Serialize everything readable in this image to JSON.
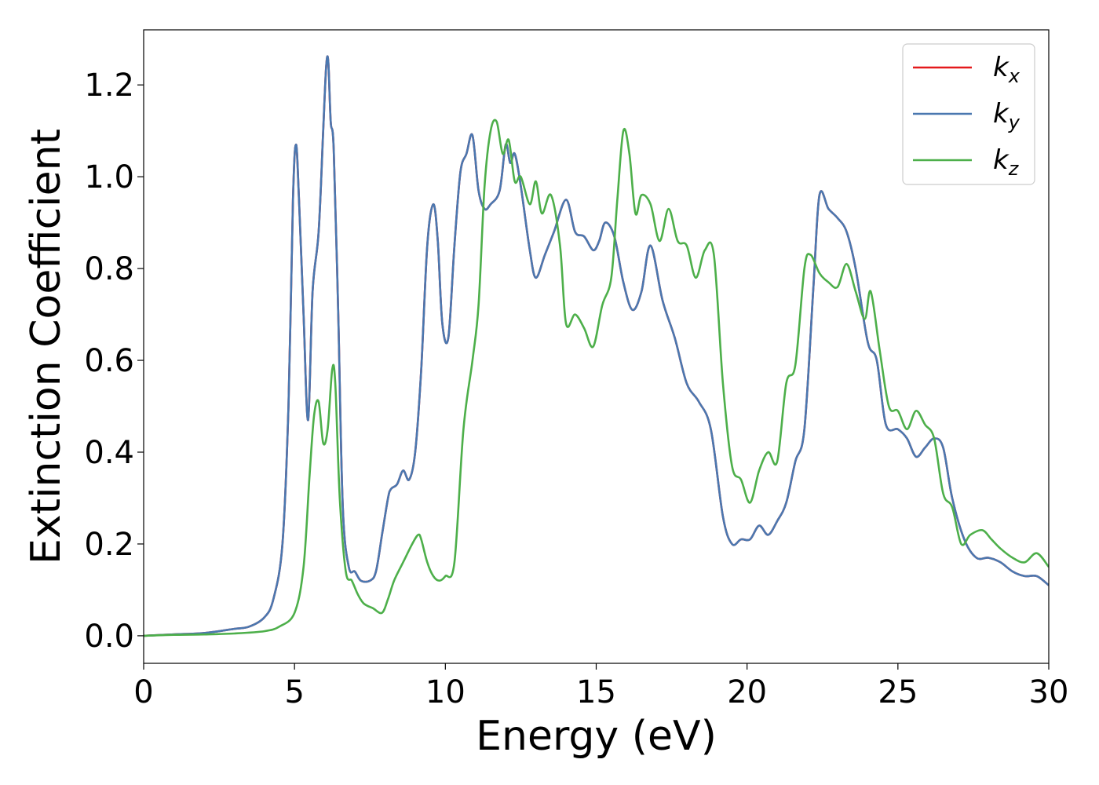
{
  "chart_data": {
    "type": "line",
    "title": "",
    "xlabel": "Energy (eV)",
    "ylabel": "Extinction Coefficient",
    "xlim": [
      0,
      30
    ],
    "ylim": [
      -0.06,
      1.32
    ],
    "xticks": [
      0,
      5,
      10,
      15,
      20,
      25,
      30
    ],
    "xtick_labels": [
      "0",
      "5",
      "10",
      "15",
      "20",
      "25",
      "30"
    ],
    "yticks": [
      0.0,
      0.2,
      0.4,
      0.6,
      0.8,
      1.0,
      1.2
    ],
    "ytick_labels": [
      "0.0",
      "0.2",
      "0.4",
      "0.6",
      "0.8",
      "1.0",
      "1.2"
    ],
    "grid": false,
    "legend": {
      "position": "top-right",
      "entries": [
        {
          "base": "k",
          "sub": "x",
          "color": "#e41a1c"
        },
        {
          "base": "k",
          "sub": "y",
          "color": "#4a78b0"
        },
        {
          "base": "k",
          "sub": "z",
          "color": "#4daf4a"
        }
      ]
    },
    "series": [
      {
        "name": "kx",
        "color": "#e41a1c",
        "x": [
          0,
          1,
          2,
          3,
          3.5,
          4,
          4.3,
          4.6,
          4.8,
          4.95,
          5.05,
          5.15,
          5.3,
          5.45,
          5.6,
          5.8,
          5.95,
          6.05,
          6.12,
          6.2,
          6.3,
          6.45,
          6.6,
          6.8,
          7,
          7.2,
          7.5,
          7.7,
          7.9,
          8.1,
          8.2,
          8.4,
          8.6,
          8.8,
          9,
          9.2,
          9.4,
          9.6,
          9.75,
          9.9,
          10.1,
          10.3,
          10.5,
          10.7,
          10.9,
          11.1,
          11.3,
          11.5,
          11.8,
          12,
          12.15,
          12.3,
          12.5,
          12.8,
          13,
          13.3,
          13.6,
          14,
          14.3,
          14.6,
          14.9,
          15.1,
          15.3,
          15.6,
          15.9,
          16.2,
          16.5,
          16.8,
          17.2,
          17.6,
          18,
          18.4,
          18.8,
          19.2,
          19.5,
          19.8,
          20.1,
          20.4,
          20.7,
          21,
          21.3,
          21.6,
          21.9,
          22.2,
          22.4,
          22.7,
          23,
          23.3,
          23.6,
          24,
          24.3,
          24.6,
          25,
          25.3,
          25.6,
          25.9,
          26.2,
          26.5,
          26.8,
          27.2,
          27.6,
          28,
          28.4,
          28.8,
          29.2,
          29.6,
          30
        ],
        "values": [
          0,
          0.003,
          0.006,
          0.015,
          0.02,
          0.04,
          0.08,
          0.2,
          0.5,
          0.95,
          1.07,
          0.95,
          0.7,
          0.47,
          0.75,
          0.88,
          1.1,
          1.24,
          1.25,
          1.12,
          1.06,
          0.7,
          0.28,
          0.15,
          0.14,
          0.12,
          0.12,
          0.14,
          0.22,
          0.3,
          0.32,
          0.33,
          0.36,
          0.34,
          0.4,
          0.58,
          0.85,
          0.94,
          0.86,
          0.68,
          0.65,
          0.85,
          1.01,
          1.05,
          1.09,
          0.97,
          0.93,
          0.94,
          0.97,
          1.07,
          1.03,
          1.05,
          0.98,
          0.84,
          0.78,
          0.83,
          0.88,
          0.95,
          0.88,
          0.87,
          0.84,
          0.86,
          0.9,
          0.87,
          0.77,
          0.71,
          0.75,
          0.85,
          0.73,
          0.65,
          0.55,
          0.51,
          0.45,
          0.26,
          0.2,
          0.21,
          0.21,
          0.24,
          0.22,
          0.25,
          0.29,
          0.38,
          0.45,
          0.76,
          0.96,
          0.93,
          0.91,
          0.88,
          0.8,
          0.64,
          0.6,
          0.46,
          0.45,
          0.43,
          0.39,
          0.41,
          0.43,
          0.41,
          0.3,
          0.21,
          0.17,
          0.17,
          0.16,
          0.14,
          0.13,
          0.13,
          0.11
        ]
      },
      {
        "name": "ky",
        "color": "#4a78b0",
        "x": [
          0,
          1,
          2,
          3,
          3.5,
          4,
          4.3,
          4.6,
          4.8,
          4.95,
          5.05,
          5.15,
          5.3,
          5.45,
          5.6,
          5.8,
          5.95,
          6.05,
          6.12,
          6.2,
          6.3,
          6.45,
          6.6,
          6.8,
          7,
          7.2,
          7.5,
          7.7,
          7.9,
          8.1,
          8.2,
          8.4,
          8.6,
          8.8,
          9,
          9.2,
          9.4,
          9.6,
          9.75,
          9.9,
          10.1,
          10.3,
          10.5,
          10.7,
          10.9,
          11.1,
          11.3,
          11.5,
          11.8,
          12,
          12.15,
          12.3,
          12.5,
          12.8,
          13,
          13.3,
          13.6,
          14,
          14.3,
          14.6,
          14.9,
          15.1,
          15.3,
          15.6,
          15.9,
          16.2,
          16.5,
          16.8,
          17.2,
          17.6,
          18,
          18.4,
          18.8,
          19.2,
          19.5,
          19.8,
          20.1,
          20.4,
          20.7,
          21,
          21.3,
          21.6,
          21.9,
          22.2,
          22.4,
          22.7,
          23,
          23.3,
          23.6,
          24,
          24.3,
          24.6,
          25,
          25.3,
          25.6,
          25.9,
          26.2,
          26.5,
          26.8,
          27.2,
          27.6,
          28,
          28.4,
          28.8,
          29.2,
          29.6,
          30
        ],
        "values": [
          0,
          0.003,
          0.006,
          0.015,
          0.02,
          0.04,
          0.08,
          0.2,
          0.5,
          0.95,
          1.07,
          0.95,
          0.7,
          0.47,
          0.75,
          0.88,
          1.1,
          1.24,
          1.25,
          1.12,
          1.06,
          0.7,
          0.28,
          0.15,
          0.14,
          0.12,
          0.12,
          0.14,
          0.22,
          0.3,
          0.32,
          0.33,
          0.36,
          0.34,
          0.4,
          0.58,
          0.85,
          0.94,
          0.86,
          0.68,
          0.65,
          0.85,
          1.01,
          1.05,
          1.09,
          0.97,
          0.93,
          0.94,
          0.97,
          1.07,
          1.03,
          1.05,
          0.98,
          0.84,
          0.78,
          0.83,
          0.88,
          0.95,
          0.88,
          0.87,
          0.84,
          0.86,
          0.9,
          0.87,
          0.77,
          0.71,
          0.75,
          0.85,
          0.73,
          0.65,
          0.55,
          0.51,
          0.45,
          0.26,
          0.2,
          0.21,
          0.21,
          0.24,
          0.22,
          0.25,
          0.29,
          0.38,
          0.45,
          0.76,
          0.96,
          0.93,
          0.91,
          0.88,
          0.8,
          0.64,
          0.6,
          0.46,
          0.45,
          0.43,
          0.39,
          0.41,
          0.43,
          0.41,
          0.3,
          0.21,
          0.17,
          0.17,
          0.16,
          0.14,
          0.13,
          0.13,
          0.11
        ]
      },
      {
        "name": "kz",
        "color": "#4daf4a",
        "x": [
          0,
          1,
          2,
          3,
          4,
          4.5,
          5,
          5.3,
          5.5,
          5.65,
          5.8,
          5.95,
          6.1,
          6.25,
          6.35,
          6.5,
          6.7,
          6.9,
          7.1,
          7.3,
          7.6,
          7.9,
          8.1,
          8.3,
          8.6,
          8.9,
          9.1,
          9.2,
          9.4,
          9.6,
          9.8,
          10,
          10.3,
          10.6,
          10.9,
          11.1,
          11.3,
          11.5,
          11.7,
          11.9,
          12.1,
          12.3,
          12.5,
          12.8,
          13,
          13.2,
          13.5,
          13.8,
          14,
          14.3,
          14.6,
          14.9,
          15.2,
          15.5,
          15.7,
          15.9,
          16.1,
          16.3,
          16.5,
          16.8,
          17.1,
          17.4,
          17.7,
          18,
          18.3,
          18.6,
          18.9,
          19.2,
          19.5,
          19.8,
          20.1,
          20.4,
          20.7,
          21,
          21.3,
          21.6,
          21.9,
          22.1,
          22.4,
          22.7,
          23,
          23.3,
          23.6,
          23.9,
          24.1,
          24.4,
          24.7,
          25,
          25.3,
          25.6,
          25.9,
          26.2,
          26.5,
          26.8,
          27.1,
          27.4,
          27.8,
          28.1,
          28.4,
          28.8,
          29.2,
          29.6,
          30
        ],
        "values": [
          0,
          0.002,
          0.003,
          0.005,
          0.01,
          0.02,
          0.05,
          0.15,
          0.35,
          0.48,
          0.51,
          0.42,
          0.45,
          0.58,
          0.55,
          0.3,
          0.14,
          0.12,
          0.09,
          0.07,
          0.06,
          0.05,
          0.08,
          0.12,
          0.16,
          0.2,
          0.22,
          0.21,
          0.16,
          0.13,
          0.12,
          0.13,
          0.16,
          0.45,
          0.6,
          0.72,
          0.98,
          1.1,
          1.12,
          1.05,
          1.08,
          0.99,
          1.0,
          0.94,
          0.99,
          0.92,
          0.96,
          0.85,
          0.68,
          0.7,
          0.67,
          0.63,
          0.72,
          0.78,
          0.95,
          1.1,
          1.05,
          0.92,
          0.96,
          0.94,
          0.86,
          0.93,
          0.86,
          0.85,
          0.78,
          0.84,
          0.83,
          0.55,
          0.37,
          0.34,
          0.29,
          0.36,
          0.4,
          0.38,
          0.55,
          0.59,
          0.8,
          0.83,
          0.79,
          0.77,
          0.76,
          0.81,
          0.75,
          0.69,
          0.75,
          0.62,
          0.5,
          0.49,
          0.45,
          0.49,
          0.46,
          0.43,
          0.31,
          0.28,
          0.2,
          0.22,
          0.23,
          0.21,
          0.19,
          0.17,
          0.16,
          0.18,
          0.15
        ]
      }
    ]
  }
}
